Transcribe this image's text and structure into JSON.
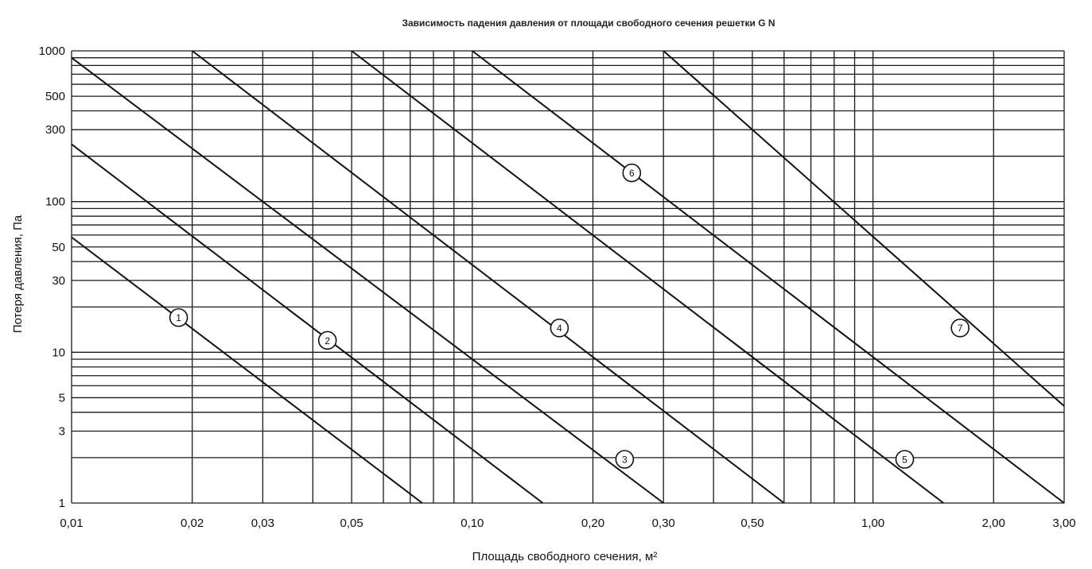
{
  "chart_data": {
    "type": "line",
    "title": "Зависимость падения давления от площади свободного сечения решетки G N",
    "xlabel": "Площадь свободного сечения, м²",
    "ylabel": "Потеря давления, Па",
    "x_scale": "log",
    "y_scale": "log",
    "xlim": [
      0.01,
      3.0
    ],
    "ylim": [
      1,
      1000
    ],
    "grid": true,
    "x_ticks": [
      {
        "value": 0.01,
        "label": "0,01"
      },
      {
        "value": 0.02,
        "label": "0,02"
      },
      {
        "value": 0.03,
        "label": "0,03"
      },
      {
        "value": 0.05,
        "label": "0,05"
      },
      {
        "value": 0.1,
        "label": "0,10"
      },
      {
        "value": 0.2,
        "label": "0,20"
      },
      {
        "value": 0.3,
        "label": "0,30"
      },
      {
        "value": 0.5,
        "label": "0,50"
      },
      {
        "value": 1.0,
        "label": "1,00"
      },
      {
        "value": 2.0,
        "label": "2,00"
      },
      {
        "value": 3.0,
        "label": "3,00"
      }
    ],
    "y_ticks": [
      {
        "value": 1,
        "label": "1"
      },
      {
        "value": 3,
        "label": "3"
      },
      {
        "value": 5,
        "label": "5"
      },
      {
        "value": 10,
        "label": "10"
      },
      {
        "value": 30,
        "label": "30"
      },
      {
        "value": 50,
        "label": "50"
      },
      {
        "value": 100,
        "label": "100"
      },
      {
        "value": 300,
        "label": "300"
      },
      {
        "value": 500,
        "label": "500"
      },
      {
        "value": 1000,
        "label": "1000"
      }
    ],
    "x_grid": [
      0.01,
      0.02,
      0.03,
      0.04,
      0.05,
      0.06,
      0.07,
      0.08,
      0.09,
      0.1,
      0.2,
      0.3,
      0.4,
      0.5,
      0.6,
      0.7,
      0.8,
      0.9,
      1.0,
      2.0,
      3.0
    ],
    "y_grid": [
      1,
      2,
      3,
      4,
      5,
      6,
      7,
      8,
      9,
      10,
      20,
      30,
      40,
      50,
      60,
      70,
      80,
      90,
      100,
      200,
      300,
      400,
      500,
      600,
      700,
      800,
      900,
      1000
    ],
    "series": [
      {
        "name": "1",
        "points": [
          [
            0.01,
            58
          ],
          [
            0.075,
            1
          ]
        ],
        "label_at": [
          0.0185,
          17
        ]
      },
      {
        "name": "2",
        "points": [
          [
            0.01,
            240
          ],
          [
            0.15,
            1
          ]
        ],
        "label_at": [
          0.0435,
          12
        ]
      },
      {
        "name": "3",
        "points": [
          [
            0.01,
            900
          ],
          [
            0.3,
            1
          ]
        ],
        "label_at": [
          0.24,
          1.95
        ]
      },
      {
        "name": "4",
        "points": [
          [
            0.02,
            1000
          ],
          [
            0.6,
            1
          ]
        ],
        "label_at": [
          0.165,
          14.5
        ]
      },
      {
        "name": "5",
        "points": [
          [
            0.05,
            1000
          ],
          [
            1.5,
            1
          ]
        ],
        "label_at": [
          1.2,
          1.95
        ]
      },
      {
        "name": "6",
        "points": [
          [
            0.1,
            1000
          ],
          [
            3.0,
            1
          ]
        ],
        "label_at": [
          0.25,
          155
        ]
      },
      {
        "name": "7",
        "points": [
          [
            0.3,
            1000
          ],
          [
            3.0,
            4.4
          ]
        ],
        "label_at": [
          1.65,
          14.5
        ]
      }
    ]
  }
}
